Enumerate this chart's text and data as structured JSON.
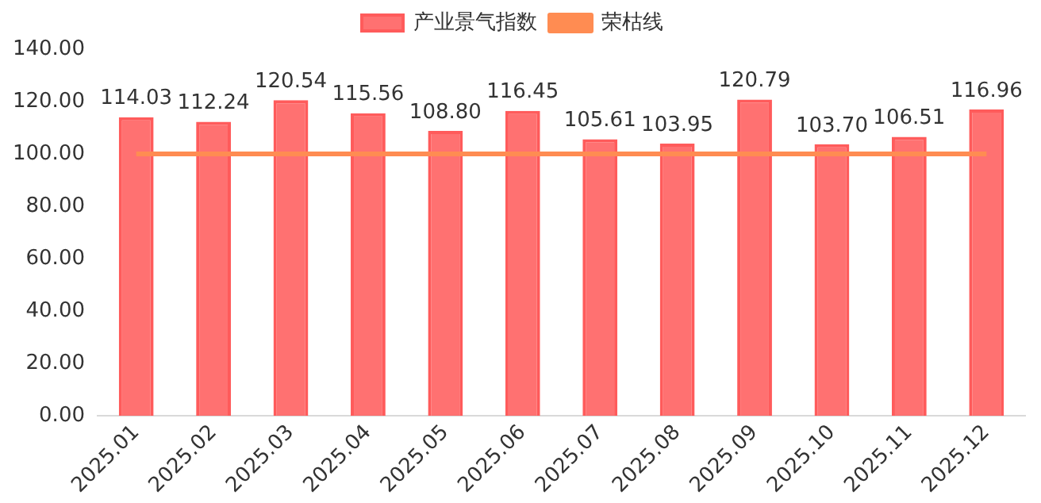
{
  "chart_data": {
    "type": "bar",
    "categories": [
      "2025.01",
      "2025.02",
      "2025.03",
      "2025.04",
      "2025.05",
      "2025.06",
      "2025.07",
      "2025.08",
      "2025.09",
      "2025.10",
      "2025.11",
      "2025.12"
    ],
    "series": [
      {
        "name": "产业景气指数",
        "color": "#ff5b5b",
        "values": [
          114.03,
          112.24,
          120.54,
          115.56,
          108.8,
          116.45,
          105.61,
          103.95,
          120.79,
          103.7,
          106.51,
          116.96
        ],
        "value_labels": [
          "114.03",
          "112.24",
          "120.54",
          "115.56",
          "108.80",
          "116.45",
          "105.61",
          "103.95",
          "120.79",
          "103.70",
          "106.51",
          "116.96"
        ]
      },
      {
        "name": "荣枯线",
        "type": "line",
        "color": "#ff8c52",
        "values": [
          100,
          100,
          100,
          100,
          100,
          100,
          100,
          100,
          100,
          100,
          100,
          100
        ]
      }
    ],
    "ylim": [
      0,
      140
    ],
    "yticks": [
      {
        "value": 0,
        "label": "0.00"
      },
      {
        "value": 20,
        "label": "20.00"
      },
      {
        "value": 40,
        "label": "40.00"
      },
      {
        "value": 60,
        "label": "60.00"
      },
      {
        "value": 80,
        "label": "80.00"
      },
      {
        "value": 100,
        "label": "100.00"
      },
      {
        "value": 120,
        "label": "120.00"
      },
      {
        "value": 140,
        "label": "140.00"
      }
    ],
    "grid": false,
    "legend": "top",
    "marker": "none"
  }
}
